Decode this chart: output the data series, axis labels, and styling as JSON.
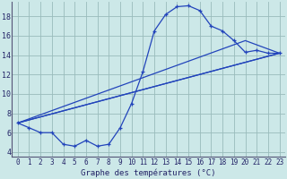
{
  "title": "",
  "xlabel": "Graphe des températures (°C)",
  "ylabel": "",
  "background_color": "#cce8e8",
  "grid_color": "#99bbbb",
  "line_color": "#2244bb",
  "xlim": [
    -0.5,
    23.5
  ],
  "ylim": [
    3.5,
    19.5
  ],
  "xticks": [
    0,
    1,
    2,
    3,
    4,
    5,
    6,
    7,
    8,
    9,
    10,
    11,
    12,
    13,
    14,
    15,
    16,
    17,
    18,
    19,
    20,
    21,
    22,
    23
  ],
  "yticks": [
    4,
    6,
    8,
    10,
    12,
    14,
    16,
    18
  ],
  "series1_x": [
    0,
    1,
    2,
    3,
    4,
    5,
    6,
    7,
    8,
    9,
    10,
    11,
    12,
    13,
    14,
    15,
    16,
    17,
    18,
    19,
    20,
    21,
    22,
    23
  ],
  "series1_y": [
    7.0,
    6.5,
    6.0,
    6.0,
    4.8,
    4.6,
    5.2,
    4.6,
    4.8,
    6.5,
    9.0,
    12.3,
    16.5,
    18.2,
    19.0,
    19.1,
    18.6,
    17.0,
    16.5,
    15.5,
    14.3,
    14.5,
    14.2,
    14.2
  ],
  "series2_x": [
    0,
    23
  ],
  "series2_y": [
    7.0,
    14.2
  ],
  "series3_x": [
    0,
    23
  ],
  "series3_y": [
    7.0,
    14.2
  ],
  "series4_x": [
    0,
    20,
    23
  ],
  "series4_y": [
    7.0,
    15.5,
    14.2
  ],
  "xlabel_fontsize": 6.5,
  "tick_fontsize": 5.5
}
